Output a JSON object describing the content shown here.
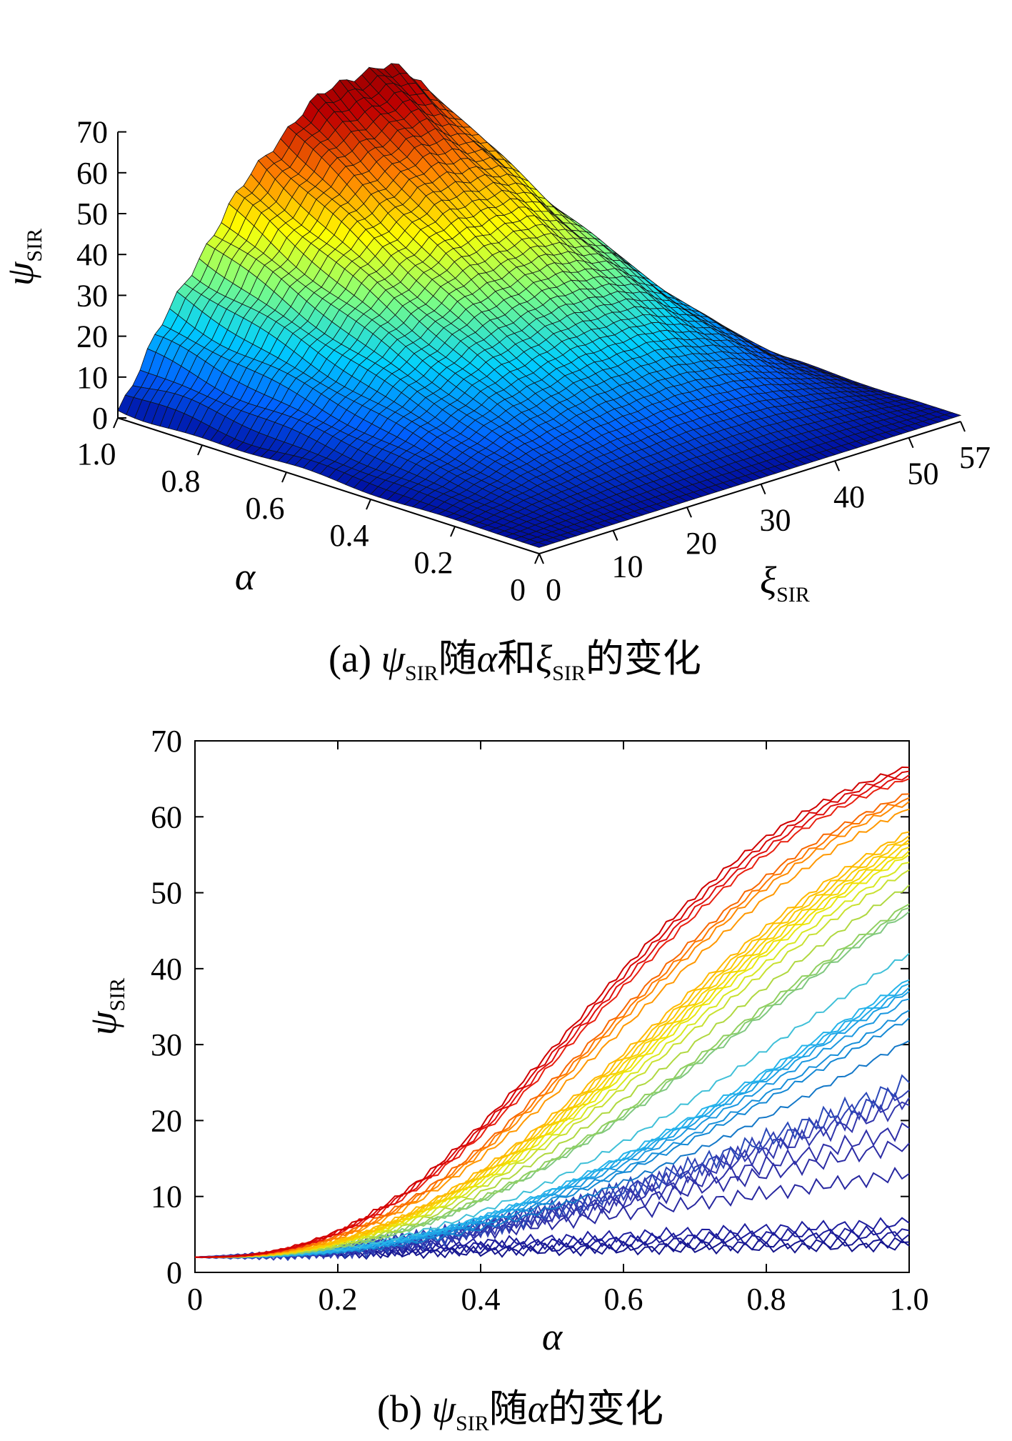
{
  "panel_a": {
    "caption_prefix": "(a) ",
    "caption_psi": "ψ",
    "caption_sub": "SIR",
    "caption_mid": "随",
    "caption_alpha": "α",
    "caption_and": "和",
    "caption_xi": "ξ",
    "caption_sub2": "SIR",
    "caption_end": "的变化"
  },
  "panel_b": {
    "caption_prefix": "(b) ",
    "caption_psi": "ψ",
    "caption_sub": "SIR",
    "caption_mid": "随",
    "caption_alpha": "α",
    "caption_end": "的变化"
  },
  "chart_data": [
    {
      "type": "surface",
      "x_label": "ξ",
      "x_label_sub": "SIR",
      "y_label": "α",
      "z_label": "ψ",
      "z_label_sub": "SIR",
      "x_ticks": [
        "0",
        "10",
        "20",
        "30",
        "40",
        "50",
        "57"
      ],
      "y_ticks": [
        "0",
        "0.2",
        "0.4",
        "0.6",
        "0.8",
        "1.0"
      ],
      "z_ticks": [
        "0",
        "10",
        "20",
        "30",
        "40",
        "50",
        "60",
        "70"
      ],
      "x_range": [
        0,
        57
      ],
      "y_range": [
        0,
        1
      ],
      "z_range": [
        0,
        70
      ],
      "z_peak": 66,
      "z_peak_at_xi": 34,
      "colormap": [
        "#00008f",
        "#0060ff",
        "#00d0ff",
        "#80ff80",
        "#ffff00",
        "#ff8000",
        "#c00000",
        "#800000"
      ]
    },
    {
      "type": "line",
      "xlabel": "α",
      "ylabel": "ψ",
      "ylabel_sub": "SIR",
      "xlim": [
        0,
        1
      ],
      "ylim": [
        0,
        70
      ],
      "x_ticks": [
        "0",
        "0.2",
        "0.4",
        "0.6",
        "0.8",
        "1.0"
      ],
      "y_ticks": [
        "0",
        "10",
        "20",
        "30",
        "40",
        "50",
        "60",
        "70"
      ],
      "series_start_value": 2,
      "series_final_values": [
        3.5,
        4,
        5,
        5.5,
        6.5,
        13,
        17,
        19,
        22,
        23,
        24,
        25,
        30.5,
        33.5,
        34.5,
        36,
        37,
        37.5,
        38,
        38.5,
        42,
        47.5,
        48,
        48.5,
        51,
        53,
        54,
        55,
        55.5,
        56,
        56.5,
        57,
        57.5,
        58,
        61,
        62,
        62.5,
        63,
        65,
        65.5,
        66,
        66.5
      ],
      "series_colors": [
        "#14148a",
        "#161690",
        "#1a1a96",
        "#1c1c9a",
        "#1e1e9e",
        "#2828a0",
        "#2c2ca4",
        "#2f30a8",
        "#3236ac",
        "#3438b0",
        "#3040b4",
        "#2a48b8",
        "#1478c8",
        "#1488d4",
        "#1890da",
        "#1c98e0",
        "#1ca0e4",
        "#20a8e8",
        "#22aeea",
        "#26b4ea",
        "#40c0d8",
        "#80c880",
        "#88cc70",
        "#90d060",
        "#b0d840",
        "#c8e030",
        "#d8e820",
        "#e8e810",
        "#f0e000",
        "#f4d800",
        "#f8d000",
        "#fac800",
        "#fcc000",
        "#ffb800",
        "#ff9800",
        "#ff8a00",
        "#ff7800",
        "#f86800",
        "#e82010",
        "#e01010",
        "#d80808",
        "#d00000"
      ]
    }
  ]
}
